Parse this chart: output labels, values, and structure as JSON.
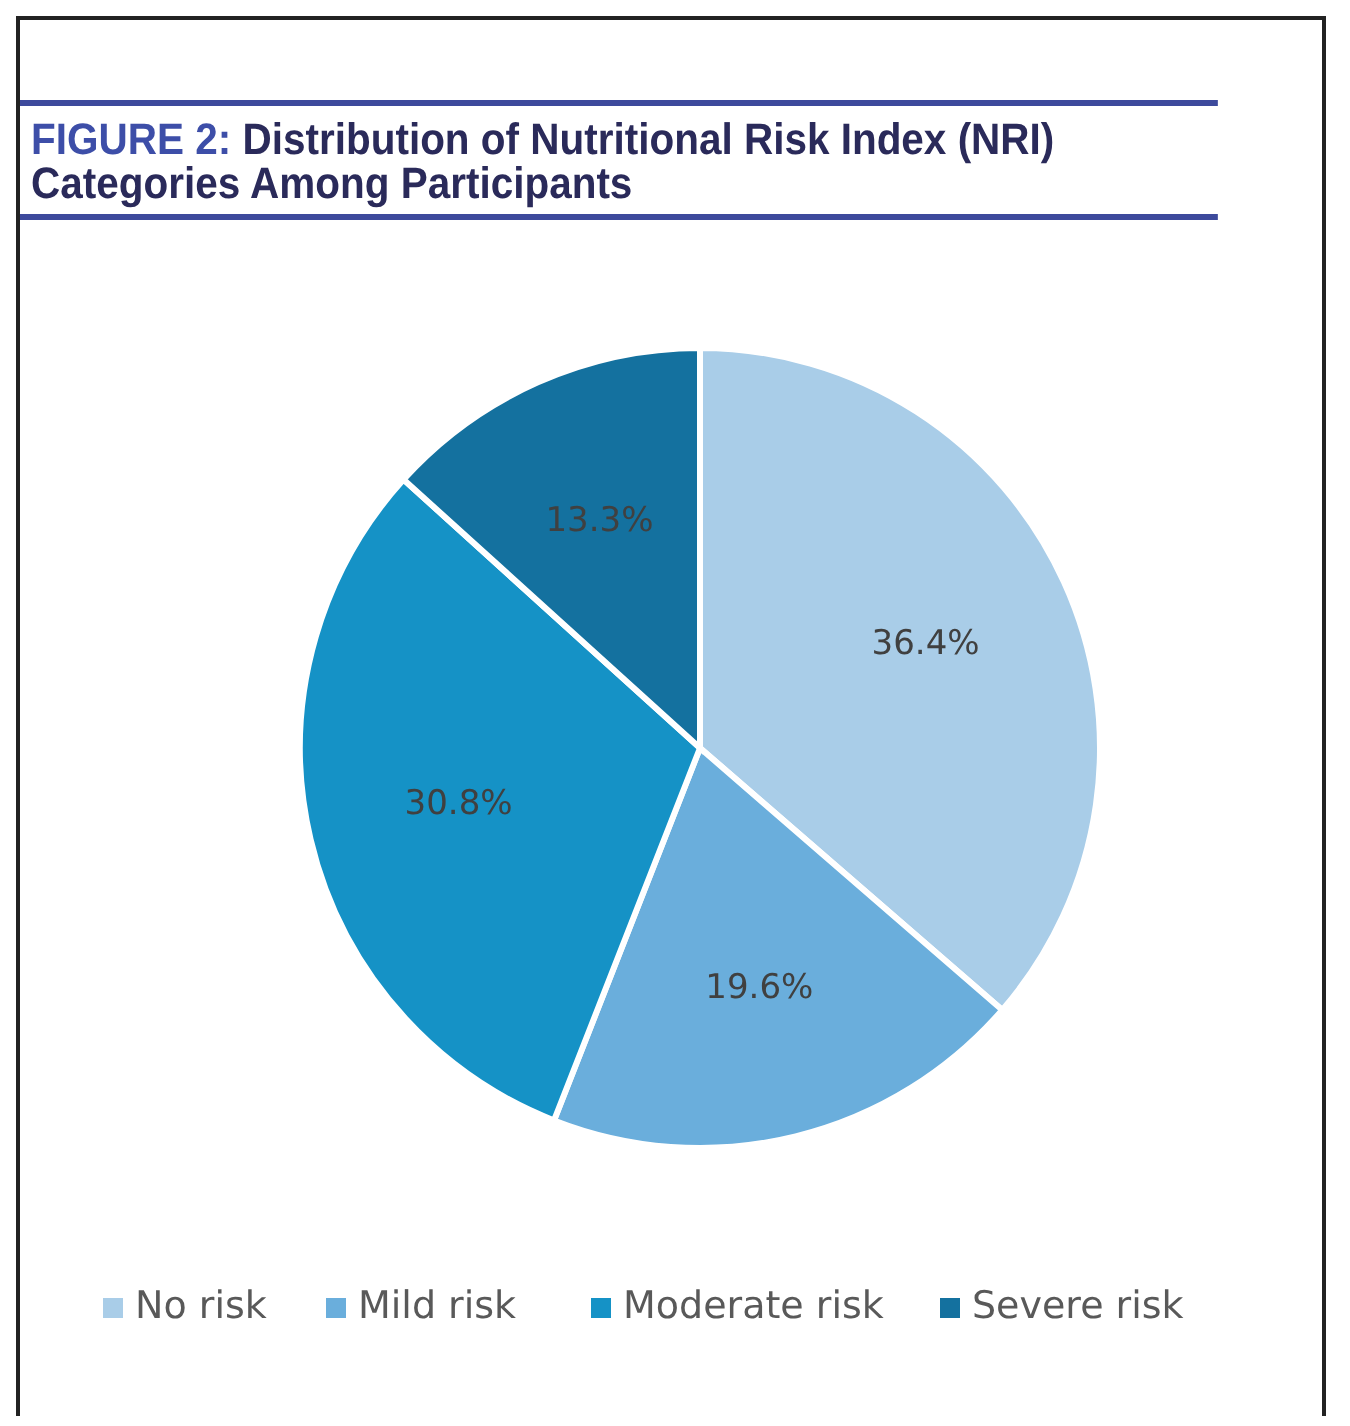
{
  "chart_data": {
    "type": "pie",
    "title": "FIGURE 2: Distribution of Nutritional Risk Index (NRI) Categories Among Participants",
    "categories": [
      "No risk",
      "Mild risk",
      "Moderate risk",
      "Severe risk"
    ],
    "values": [
      36.4,
      19.6,
      30.8,
      13.3
    ],
    "colors": [
      "#a9cde8",
      "#6aaedc",
      "#1592c6",
      "#14719f"
    ],
    "value_labels": [
      "36.4%",
      "19.6%",
      "30.8%",
      "13.3%"
    ],
    "legend": "bottom"
  }
}
